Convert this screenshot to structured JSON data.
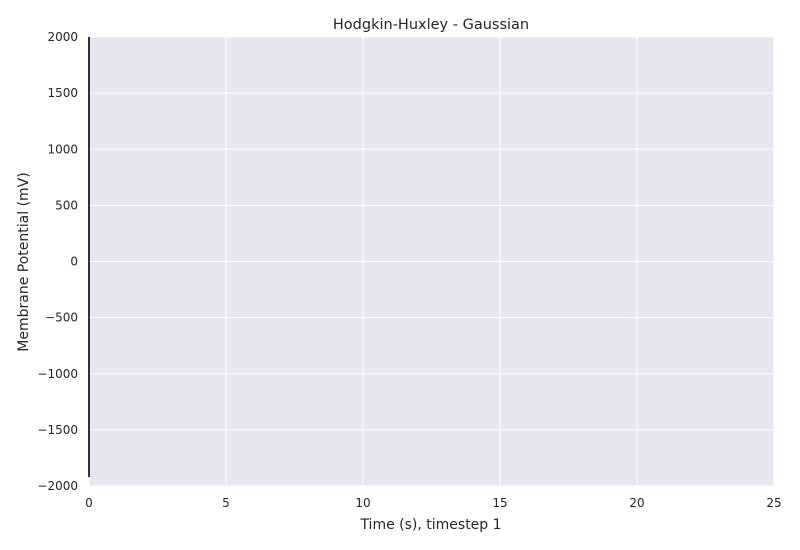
{
  "chart_data": {
    "type": "line",
    "title": "Hodgkin-Huxley - Gaussian",
    "xlabel": "Time (s), timestep 1",
    "ylabel": "Membrane Potential (mV)",
    "xlim": [
      0,
      25
    ],
    "ylim": [
      -2000,
      2000
    ],
    "xticks": [
      0,
      5,
      10,
      15,
      20,
      25
    ],
    "xtick_labels": [
      "0",
      "5",
      "10",
      "15",
      "20",
      "25"
    ],
    "yticks": [
      2000,
      1500,
      1000,
      500,
      0,
      -500,
      -1000,
      -1500,
      -2000
    ],
    "ytick_labels": [
      "2000",
      "1500",
      "1000",
      "500",
      "0",
      "−500",
      "−1000",
      "−1500",
      "−2000"
    ],
    "grid": true,
    "legend": null,
    "colors": {
      "background": "#e5e6ef",
      "grid": "#ffffff",
      "line": "#000000",
      "text": "#262626"
    },
    "series": [
      {
        "x": [
          0,
          0
        ],
        "y": [
          -1920,
          2000
        ]
      }
    ]
  }
}
